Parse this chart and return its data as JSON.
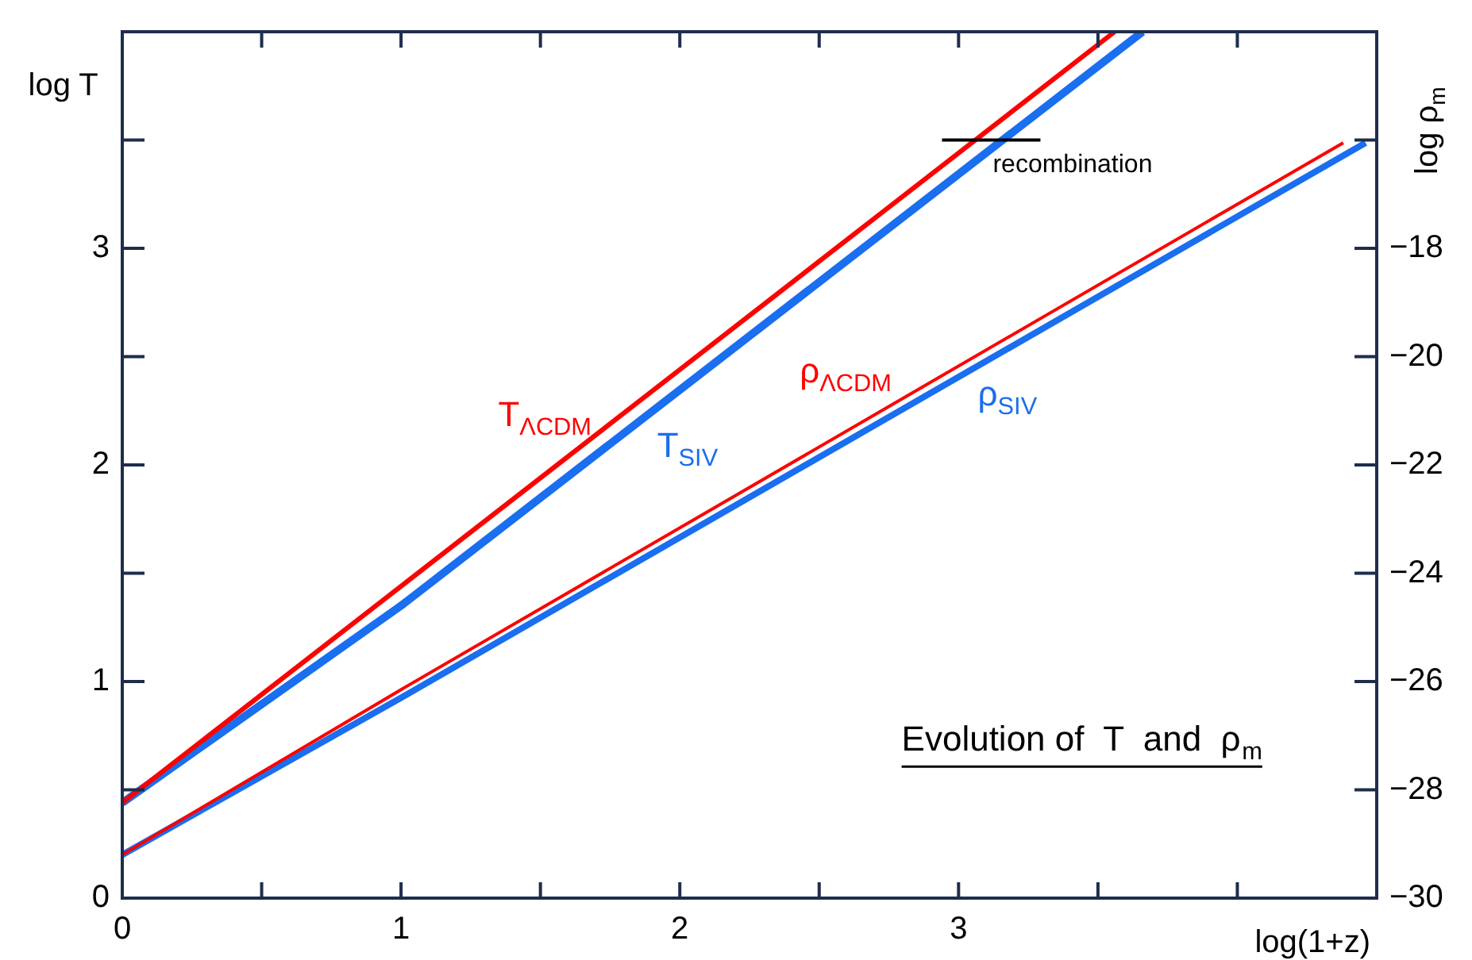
{
  "chart_data": {
    "type": "line",
    "title": "Evolution of  T  and  ρ$_{m}$",
    "xlabel": "log(1+z)",
    "ylabel": "log T",
    "y2label": "log ρ$_{m}$",
    "xlim": [
      0,
      4.5
    ],
    "xticks": [
      0,
      {
        "value": 0.5,
        "label": null
      },
      1,
      {
        "value": 1.5,
        "label": null
      },
      2,
      {
        "value": 2.5,
        "label": null
      },
      3,
      {
        "value": 3.5,
        "label": null
      },
      {
        "value": 4,
        "label": null
      }
    ],
    "ylim": [
      0,
      4
    ],
    "yticks": [
      0,
      {
        "value": 0.5,
        "label": null
      },
      1,
      {
        "value": 1.5,
        "label": null
      },
      2,
      {
        "value": 2.5,
        "label": null
      },
      3,
      {
        "value": 3.5,
        "label": null
      }
    ],
    "y2lim": [
      -30,
      -14
    ],
    "y2ticks": [
      -30,
      -28,
      -26,
      -24,
      -22,
      -20,
      -18,
      {
        "value": -16,
        "label": null
      }
    ],
    "grid": false,
    "legend": false,
    "series": [
      {
        "name": "T$_{ΛCDM}$",
        "color": "#ff0000",
        "x": [
          0,
          3.56
        ],
        "values": [
          0.44,
          4
        ]
      },
      {
        "name": "T$_{SIV}$",
        "color": "#1a6ef0",
        "x": [
          0,
          1,
          3.66
        ],
        "values": [
          0.44,
          1.35,
          4
        ]
      },
      {
        "name": "ρ$_{ΛCDM}$",
        "color": "#ff0000",
        "axis": "y2",
        "x": [
          0,
          1,
          4.38
        ],
        "values": [
          -29.2,
          -26.15,
          -16.05
        ]
      },
      {
        "name": "ρ$_{SIV}$",
        "color": "#1a6ef0",
        "axis": "y2",
        "x": [
          0,
          1,
          4.46
        ],
        "values": [
          -29.2,
          -26.3,
          -16.05
        ]
      }
    ],
    "annotations": [
      {
        "text": "recombination",
        "x": 3.1,
        "y": 3.5
      }
    ]
  }
}
